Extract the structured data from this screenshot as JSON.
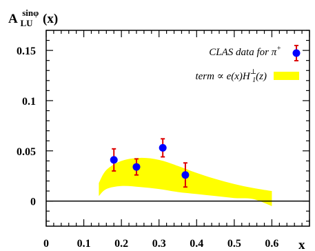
{
  "chart_data": {
    "type": "scatter",
    "ylabel": {
      "main": "A",
      "subscript": "LU",
      "superscript": "sinφ",
      "suffix": "(x)"
    },
    "xlabel": "x",
    "xlim": [
      0,
      0.7
    ],
    "ylim": [
      -0.025,
      0.17
    ],
    "x_ticks": [
      "0",
      "0.1",
      "0.2",
      "0.3",
      "0.4",
      "0.5",
      "0.6"
    ],
    "y_ticks": [
      "0",
      "0.05",
      "0.1",
      "0.15"
    ],
    "zero_line": true,
    "series": [
      {
        "name": "CLAS data for π⁺",
        "kind": "points_with_errors",
        "marker_color": "#0000ff",
        "error_color": "#dd0000",
        "points": [
          {
            "x": 0.18,
            "y": 0.041,
            "err": 0.011
          },
          {
            "x": 0.24,
            "y": 0.034,
            "err": 0.008
          },
          {
            "x": 0.31,
            "y": 0.053,
            "err": 0.009
          },
          {
            "x": 0.37,
            "y": 0.026,
            "err": 0.012
          }
        ]
      },
      {
        "name": "term ∝ e(x)H₁⊥(z)",
        "kind": "band",
        "fill_color": "#ffff00",
        "x": [
          0.14,
          0.16,
          0.2,
          0.25,
          0.3,
          0.35,
          0.4,
          0.45,
          0.5,
          0.55,
          0.6
        ],
        "upper": [
          0.018,
          0.031,
          0.04,
          0.043,
          0.041,
          0.035,
          0.028,
          0.022,
          0.017,
          0.013,
          0.01
        ],
        "lower": [
          0.005,
          0.012,
          0.015,
          0.014,
          0.012,
          0.009,
          0.007,
          0.005,
          0.003,
          0.002,
          -0.005
        ]
      }
    ],
    "legend": {
      "placement": "top-right",
      "entries": [
        {
          "text": "CLAS data for π",
          "superscript": "+"
        },
        {
          "text_before": "term ∝ e(x)H",
          "sub": "1",
          "sup": "⊥",
          "text_after": "(z)"
        }
      ]
    }
  }
}
